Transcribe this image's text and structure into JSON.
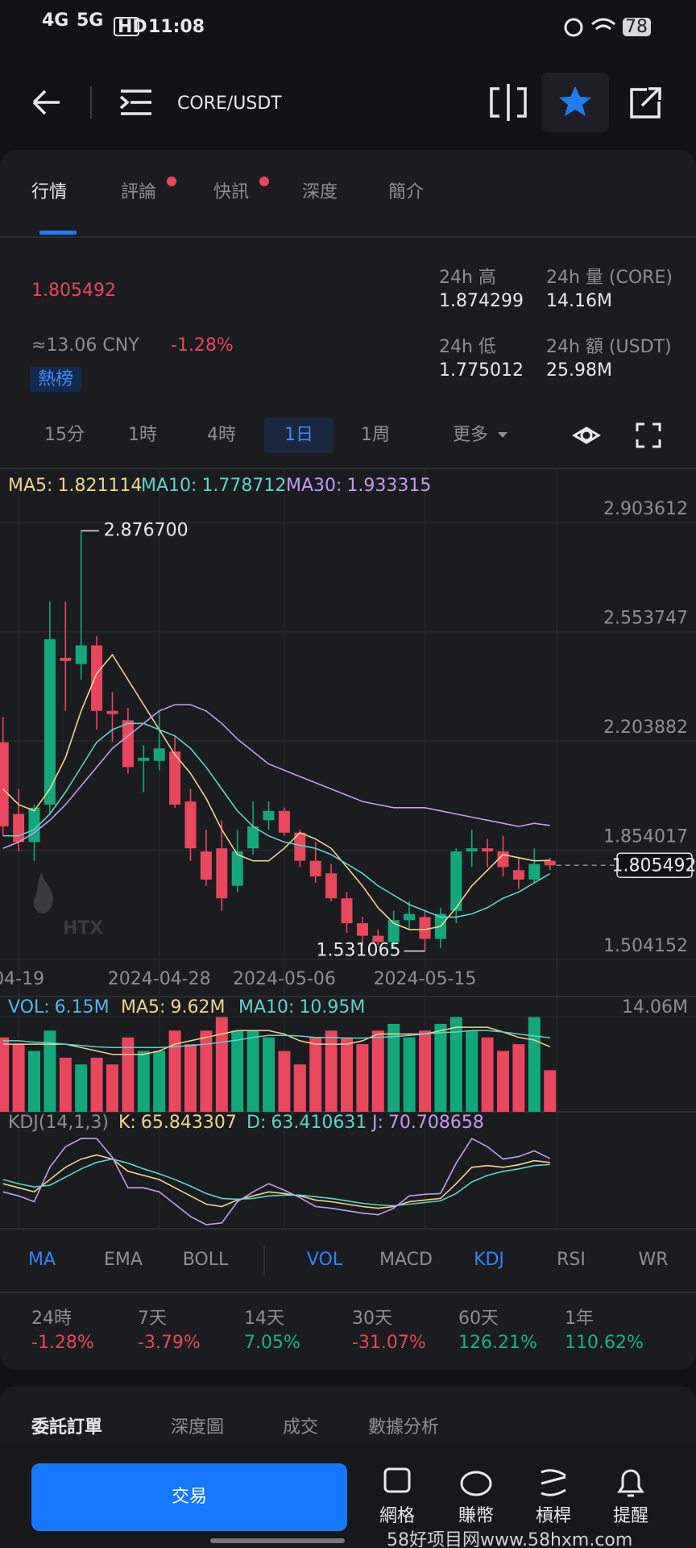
{
  "status_bar": {
    "net1": "4G",
    "net2": "5G",
    "hd": "HD",
    "time": "11:08",
    "battery": "78"
  },
  "header": {
    "pair": "CORE/USDT"
  },
  "tabs": [
    "行情",
    "評論",
    "快訊",
    "深度",
    "簡介"
  ],
  "price": {
    "last": "1.805492",
    "cny": "≈13.06 CNY",
    "change": "-1.28%",
    "tag": "熱榜"
  },
  "stats": [
    {
      "label": "24h 高",
      "value": "1.874299"
    },
    {
      "label": "24h 量 (CORE)",
      "value": "14.16M"
    },
    {
      "label": "24h 低",
      "value": "1.775012"
    },
    {
      "label": "24h 額 (USDT)",
      "value": "25.98M"
    }
  ],
  "timeframes": [
    "15分",
    "1時",
    "4時",
    "1日",
    "1周",
    "更多"
  ],
  "active_timeframe": "1日",
  "chart": {
    "type": "candlestick",
    "up_color": "#12a87c",
    "down_color": "#e8475c",
    "grid": true,
    "dates": [
      null,
      "04-19",
      null,
      null,
      null,
      null,
      null,
      null,
      null,
      null,
      "2024-04-28",
      null,
      null,
      null,
      null,
      null,
      null,
      null,
      "2024-05-06",
      null,
      null,
      null,
      null,
      null,
      null,
      null,
      null,
      "2024-05-15",
      null,
      null,
      null,
      null,
      null,
      null,
      null,
      null
    ],
    "open": [
      2.2,
      1.97,
      1.88,
      2.0,
      2.47,
      2.45,
      2.51,
      2.3,
      2.27,
      2.14,
      2.14,
      2.17,
      2.01,
      1.85,
      1.86,
      1.74,
      1.86,
      1.95,
      1.98,
      1.91,
      1.82,
      1.78,
      1.7,
      1.62,
      1.58,
      1.56,
      1.63,
      1.64,
      1.57,
      1.66,
      1.85,
      1.86,
      1.85,
      1.79,
      1.76,
      1.82
    ],
    "high": [
      2.28,
      2.05,
      2.0,
      2.65,
      2.65,
      2.8767,
      2.54,
      2.36,
      2.31,
      2.19,
      2.3,
      2.22,
      2.05,
      1.92,
      1.95,
      1.92,
      2.01,
      2.01,
      1.99,
      1.92,
      1.88,
      1.81,
      1.72,
      1.64,
      1.6,
      1.66,
      1.69,
      1.66,
      1.67,
      1.86,
      1.92,
      1.89,
      1.9,
      1.83,
      1.86,
      1.83
    ],
    "low": [
      1.9,
      1.85,
      1.82,
      1.97,
      2.3,
      2.4,
      2.24,
      2.2,
      2.1,
      2.04,
      2.11,
      1.99,
      1.82,
      1.74,
      1.66,
      1.72,
      1.84,
      1.92,
      1.9,
      1.8,
      1.75,
      1.69,
      1.59,
      1.55,
      1.55,
      1.54,
      1.6,
      1.531065,
      1.54,
      1.62,
      1.8,
      1.8,
      1.77,
      1.73,
      1.75,
      1.79
    ],
    "close": [
      1.93,
      1.88,
      1.99,
      2.53,
      2.46,
      2.51,
      2.3,
      2.29,
      2.12,
      2.15,
      2.18,
      2.0,
      1.86,
      1.76,
      1.7,
      1.85,
      1.93,
      1.98,
      1.91,
      1.82,
      1.77,
      1.7,
      1.62,
      1.58,
      1.56,
      1.63,
      1.65,
      1.57,
      1.65,
      1.85,
      1.86,
      1.85,
      1.8,
      1.76,
      1.81,
      1.805492
    ],
    "ma": [
      {
        "name": "MA5:",
        "color": "#f0d58a",
        "values": [
          2.05,
          2.0,
          1.98,
          2.05,
          2.15,
          2.3,
          2.42,
          2.48,
          2.4,
          2.32,
          2.24,
          2.16,
          2.1,
          2.02,
          1.92,
          1.84,
          1.82,
          1.82,
          1.86,
          1.91,
          1.89,
          1.86,
          1.8,
          1.74,
          1.67,
          1.62,
          1.6,
          1.6,
          1.61,
          1.67,
          1.74,
          1.79,
          1.84,
          1.83,
          1.82,
          1.821114
        ]
      },
      {
        "name": "MA10:",
        "color": "#5fd3c8",
        "values": [
          1.9,
          1.9,
          1.92,
          1.97,
          2.04,
          2.12,
          2.2,
          2.24,
          2.26,
          2.26,
          2.24,
          2.22,
          2.18,
          2.12,
          2.05,
          1.98,
          1.93,
          1.9,
          1.88,
          1.87,
          1.86,
          1.84,
          1.81,
          1.78,
          1.74,
          1.71,
          1.68,
          1.66,
          1.64,
          1.64,
          1.65,
          1.67,
          1.7,
          1.72,
          1.75,
          1.778712
        ]
      },
      {
        "name": "MA30:",
        "color": "#c59bf2",
        "values": [
          1.86,
          1.88,
          1.91,
          1.95,
          2.0,
          2.06,
          2.12,
          2.18,
          2.22,
          2.26,
          2.3,
          2.32,
          2.32,
          2.3,
          2.26,
          2.21,
          2.17,
          2.13,
          2.11,
          2.09,
          2.07,
          2.05,
          2.03,
          2.01,
          2.0,
          1.99,
          1.99,
          1.99,
          1.98,
          1.97,
          1.96,
          1.95,
          1.94,
          1.93,
          1.94,
          1.933315
        ]
      }
    ],
    "ylim": [
      1.504152,
      2.903612
    ],
    "yticks": [
      2.903612,
      2.553747,
      2.203882,
      1.854017,
      1.504152
    ],
    "annotations": [
      {
        "value": 2.8767,
        "label": "2.876700"
      },
      {
        "value": 1.531065,
        "label": "1.531065"
      }
    ],
    "watermark": "HTX",
    "volume": {
      "name": "VOL:",
      "color": "#4fb8f0",
      "value_label": "6.15M",
      "ylim": [
        0,
        14.06
      ],
      "yticks": [
        {
          "value": 14.06,
          "label": "14.06M"
        }
      ],
      "values": [
        11,
        10,
        9,
        12,
        8,
        7,
        8,
        7,
        11,
        9,
        9,
        12,
        10,
        12,
        14,
        12,
        12,
        11,
        9,
        7,
        11,
        12,
        11,
        10,
        12,
        13,
        11,
        12,
        13,
        14,
        12,
        11,
        9,
        10,
        14,
        6.15
      ],
      "ma": [
        {
          "name": "MA5:",
          "color": "#f0d58a",
          "value_label": "9.62M",
          "values": [
            10,
            10,
            10,
            10,
            10,
            9.5,
            9,
            8.5,
            8.5,
            8.5,
            9,
            10,
            10.5,
            11,
            11.5,
            12,
            12,
            12,
            11.5,
            10.5,
            10,
            10,
            10,
            10.5,
            11.5,
            11.5,
            11.5,
            11.5,
            12,
            12.5,
            12.5,
            12.5,
            11.8,
            11,
            10.6,
            9.62
          ]
        },
        {
          "name": "MA10:",
          "color": "#5fd3c8",
          "value_label": "10.95M",
          "values": [
            10.5,
            10.5,
            10.3,
            10.2,
            10,
            9.8,
            9.6,
            9.5,
            9.5,
            9.5,
            9.5,
            9.6,
            9.8,
            10,
            10.3,
            10.6,
            11,
            11.3,
            11.3,
            11.2,
            11,
            11,
            10.9,
            10.9,
            11,
            11.1,
            11.3,
            11.5,
            11.7,
            11.8,
            12,
            12,
            11.8,
            11.5,
            11.2,
            10.95
          ]
        }
      ]
    },
    "kdj": {
      "title": "KDJ(14,1,3)",
      "ylim": [
        -15,
        105
      ],
      "series": [
        {
          "name": "K:",
          "color": "#f0d58a",
          "values": [
            40,
            35,
            30,
            45,
            60,
            70,
            75,
            70,
            55,
            50,
            45,
            35,
            25,
            15,
            12,
            20,
            25,
            30,
            28,
            25,
            20,
            18,
            15,
            12,
            10,
            12,
            18,
            20,
            22,
            40,
            60,
            62,
            60,
            63,
            68,
            65.843307
          ]
        },
        {
          "name": "D:",
          "color": "#5fd3c8",
          "values": [
            45,
            40,
            36,
            38,
            48,
            58,
            66,
            70,
            65,
            58,
            52,
            45,
            37,
            28,
            22,
            21,
            22,
            25,
            26,
            26,
            24,
            22,
            19,
            16,
            14,
            13,
            15,
            17,
            19,
            28,
            42,
            50,
            55,
            58,
            62,
            63.410631
          ]
        },
        {
          "name": "J:",
          "color": "#c59bf2",
          "values": [
            30,
            25,
            18,
            60,
            85,
            95,
            95,
            72,
            35,
            35,
            30,
            15,
            0,
            -10,
            -8,
            18,
            30,
            40,
            32,
            23,
            12,
            10,
            7,
            4,
            2,
            10,
            25,
            27,
            28,
            65,
            95,
            85,
            70,
            73,
            80,
            70.708658
          ]
        }
      ]
    }
  },
  "indicator_tabs": [
    "MA",
    "EMA",
    "BOLL",
    "VOL",
    "MACD",
    "KDJ",
    "RSI",
    "WR"
  ],
  "active_indicators": [
    "MA",
    "VOL",
    "KDJ"
  ],
  "performance": [
    {
      "label": "24時",
      "value": "-1.28%"
    },
    {
      "label": "7天",
      "value": "-3.79%"
    },
    {
      "label": "14天",
      "value": "7.05%"
    },
    {
      "label": "30天",
      "value": "-31.07%"
    },
    {
      "label": "60天",
      "value": "126.21%"
    },
    {
      "label": "1年",
      "value": "110.62%"
    }
  ],
  "order_tabs": [
    "委託訂單",
    "深度圖",
    "成交",
    "數據分析"
  ],
  "bottom": {
    "trade": "交易",
    "items": [
      "網格",
      "賺幣",
      "槓桿",
      "提醒"
    ]
  },
  "site_watermark": "58好项目网www.58hxm.com"
}
